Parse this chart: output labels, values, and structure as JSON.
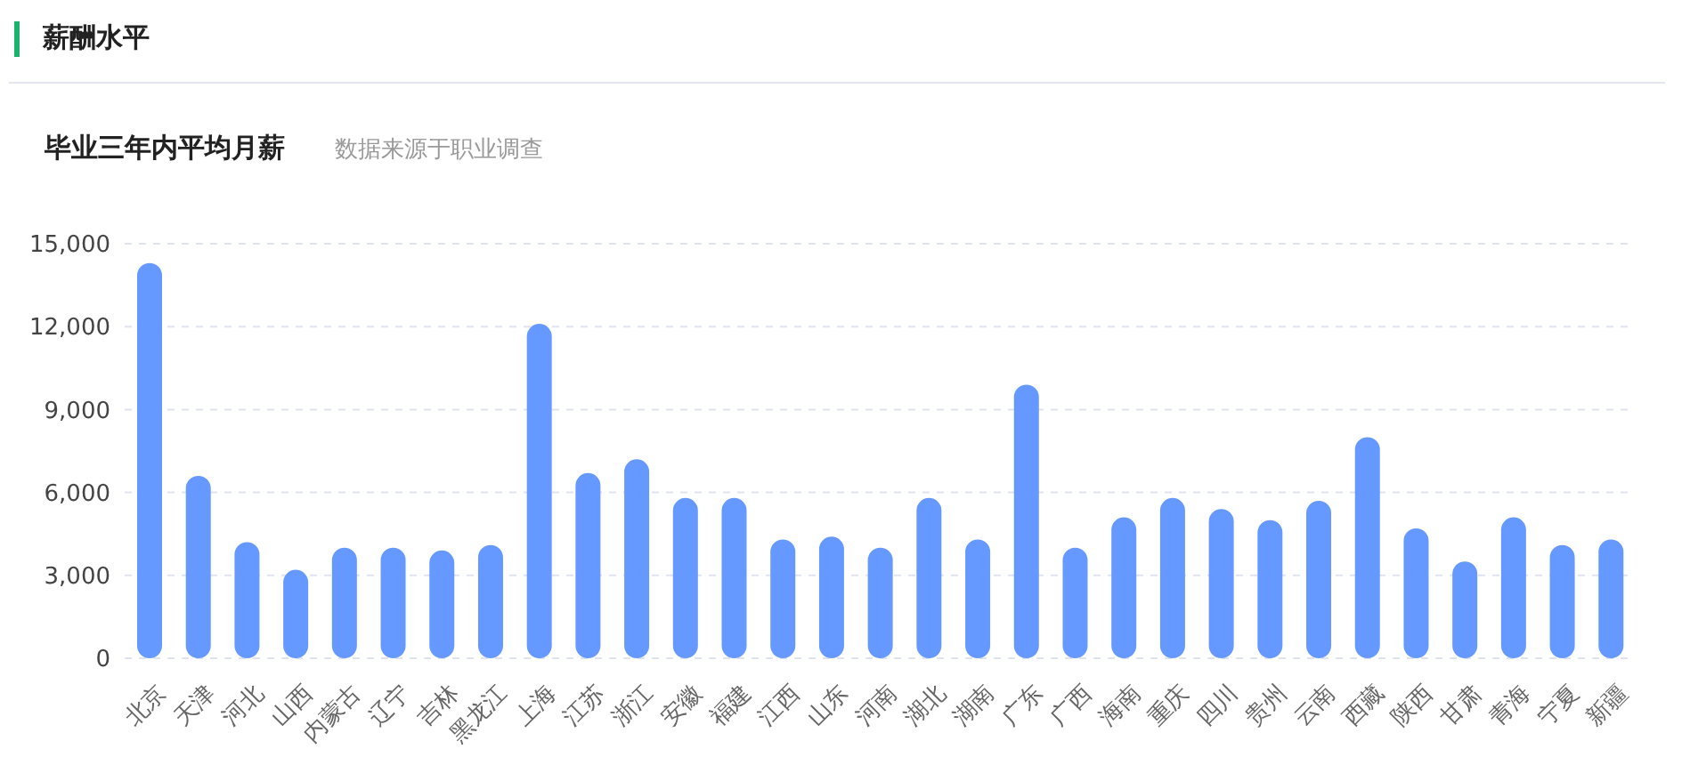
{
  "chart_data": {
    "type": "bar",
    "title": "薪酬水平",
    "subtitle": "毕业三年内平均月薪",
    "annotations": [
      "数据来源于职业调查"
    ],
    "categories": [
      "北京",
      "天津",
      "河北",
      "山西",
      "内蒙古",
      "辽宁",
      "吉林",
      "黑龙江",
      "上海",
      "江苏",
      "浙江",
      "安徽",
      "福建",
      "江西",
      "山东",
      "河南",
      "湖北",
      "湖南",
      "广东",
      "广西",
      "海南",
      "重庆",
      "四川",
      "贵州",
      "云南",
      "西藏",
      "陕西",
      "甘肃",
      "青海",
      "宁夏",
      "新疆"
    ],
    "values": [
      14300,
      6600,
      4200,
      3200,
      4000,
      4000,
      3900,
      4100,
      12100,
      6700,
      7200,
      5800,
      5800,
      4300,
      4400,
      4000,
      5800,
      4300,
      9900,
      4000,
      5100,
      5800,
      5400,
      5000,
      5700,
      8000,
      4700,
      3500,
      5100,
      4100,
      4300
    ],
    "color": "#6699ff",
    "ylim": [
      0,
      15000
    ],
    "yticks": [
      {
        "value": 0,
        "label": "0"
      },
      {
        "value": 3000,
        "label": "3,000"
      },
      {
        "value": 6000,
        "label": "6,000"
      },
      {
        "value": 9000,
        "label": "9,000"
      },
      {
        "value": 12000,
        "label": "12,000"
      },
      {
        "value": 15000,
        "label": "15,000"
      }
    ],
    "grid": "y"
  }
}
